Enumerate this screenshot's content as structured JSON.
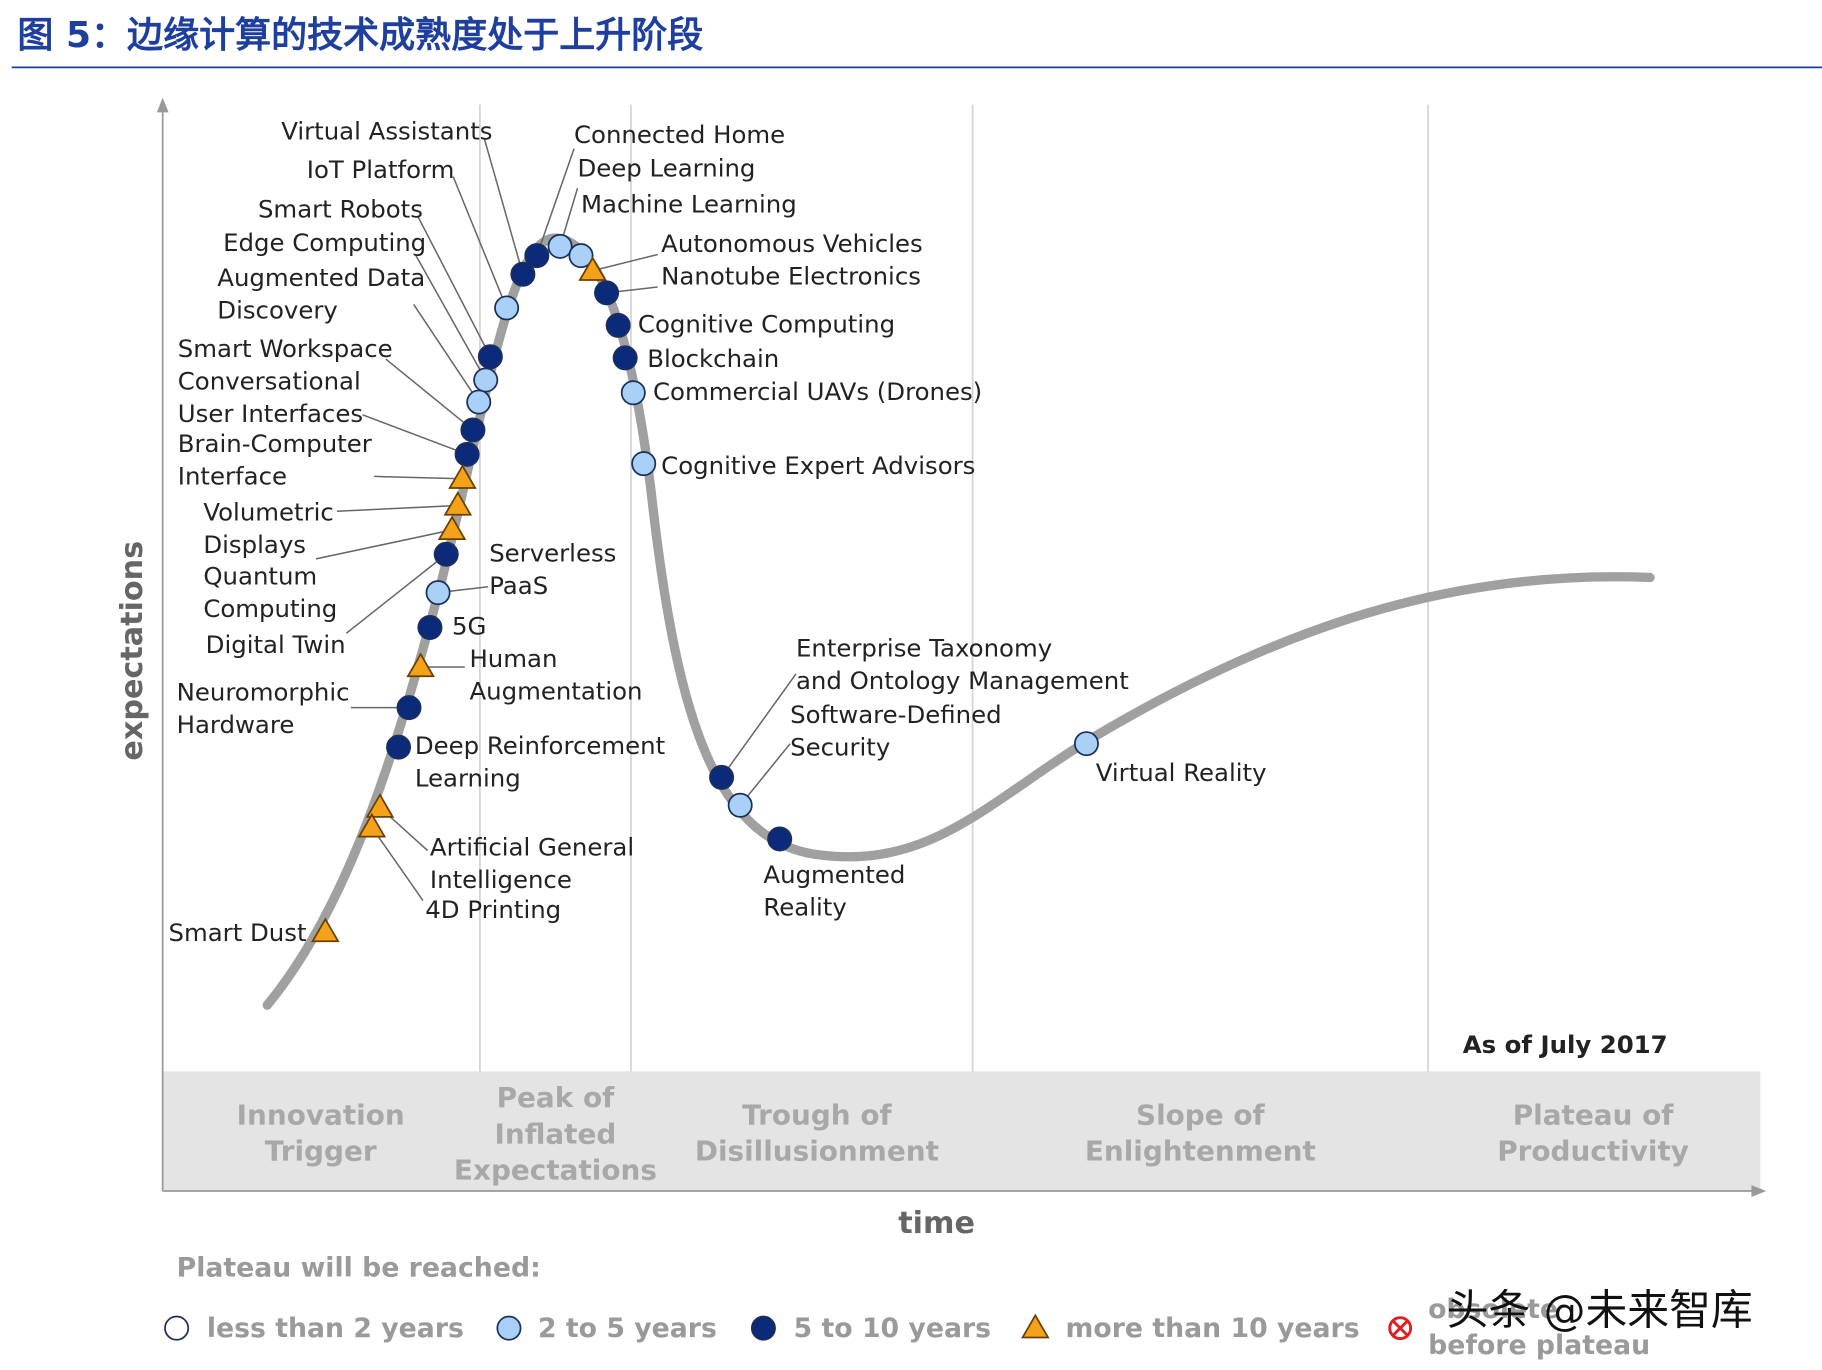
{
  "header": {
    "title": "图 5：边缘计算的技术成熟度处于上升阶段"
  },
  "diagram": {
    "y_axis_label": "expectations",
    "x_axis_label": "time",
    "date_note": "As of July 2017",
    "phases": [
      {
        "lines": [
          "Innovation",
          "Trigger"
        ]
      },
      {
        "lines": [
          "Peak of",
          "Inflated",
          "Expectations"
        ]
      },
      {
        "lines": [
          "Trough of",
          "Disillusionment"
        ]
      },
      {
        "lines": [
          "Slope of",
          "Enlightenment"
        ]
      },
      {
        "lines": [
          "Plateau of",
          "Productivity"
        ]
      }
    ],
    "items": [
      {
        "lines": [
          "Virtual Assistants"
        ]
      },
      {
        "lines": [
          "IoT Platform"
        ]
      },
      {
        "lines": [
          "Smart Robots"
        ]
      },
      {
        "lines": [
          "Edge Computing"
        ]
      },
      {
        "lines": [
          "Augmented Data",
          "Discovery"
        ]
      },
      {
        "lines": [
          "Smart Workspace"
        ]
      },
      {
        "lines": [
          "Conversational",
          "User Interfaces"
        ]
      },
      {
        "lines": [
          "Brain-Computer",
          "Interface"
        ]
      },
      {
        "lines": [
          "Volumetric",
          "Displays"
        ]
      },
      {
        "lines": [
          "Quantum",
          "Computing"
        ]
      },
      {
        "lines": [
          "Digital Twin"
        ]
      },
      {
        "lines": [
          "Serverless",
          "PaaS"
        ]
      },
      {
        "lines": [
          "5G"
        ]
      },
      {
        "lines": [
          "Human",
          "Augmentation"
        ]
      },
      {
        "lines": [
          "Neuromorphic",
          "Hardware"
        ]
      },
      {
        "lines": [
          "Deep Reinforcement",
          "Learning"
        ]
      },
      {
        "lines": [
          "Artificial General",
          "Intelligence"
        ]
      },
      {
        "lines": [
          "4D Printing"
        ]
      },
      {
        "lines": [
          "Smart Dust"
        ]
      },
      {
        "lines": [
          "Connected Home"
        ]
      },
      {
        "lines": [
          "Deep Learning"
        ]
      },
      {
        "lines": [
          "Machine Learning"
        ]
      },
      {
        "lines": [
          "Autonomous Vehicles"
        ]
      },
      {
        "lines": [
          "Nanotube Electronics"
        ]
      },
      {
        "lines": [
          "Cognitive Computing"
        ]
      },
      {
        "lines": [
          "Blockchain"
        ]
      },
      {
        "lines": [
          "Commercial UAVs (Drones)"
        ]
      },
      {
        "lines": [
          "Cognitive Expert Advisors"
        ]
      },
      {
        "lines": [
          "Enterprise Taxonomy",
          "and Ontology Management"
        ]
      },
      {
        "lines": [
          "Software-Defined",
          "Security"
        ]
      },
      {
        "lines": [
          "Augmented",
          "Reality"
        ]
      },
      {
        "lines": [
          "Virtual Reality"
        ]
      }
    ],
    "legend": {
      "title": "Plateau will be reached:",
      "entries": [
        {
          "lines": [
            "less than 2 years"
          ]
        },
        {
          "lines": [
            "2 to 5 years"
          ]
        },
        {
          "lines": [
            "5 to 10 years"
          ]
        },
        {
          "lines": [
            "more than 10 years"
          ]
        },
        {
          "lines": [
            "obsolete",
            "before plateau"
          ]
        }
      ]
    }
  },
  "watermark": "头条 @未来智库"
}
